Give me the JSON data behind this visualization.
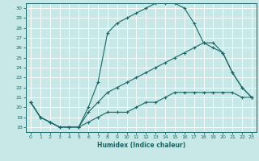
{
  "xlabel": "Humidex (Indice chaleur)",
  "xlim": [
    -0.5,
    23.5
  ],
  "ylim": [
    17.5,
    30.5
  ],
  "xticks": [
    0,
    1,
    2,
    3,
    4,
    5,
    6,
    7,
    8,
    9,
    10,
    11,
    12,
    13,
    14,
    15,
    16,
    17,
    18,
    19,
    20,
    21,
    22,
    23
  ],
  "yticks": [
    18,
    19,
    20,
    21,
    22,
    23,
    24,
    25,
    26,
    27,
    28,
    29,
    30
  ],
  "bg_color": "#c8e8e8",
  "grid_color": "#ffffff",
  "line_color": "#1a6666",
  "c3_x": [
    0,
    1,
    2,
    3,
    4,
    5,
    6,
    7,
    8,
    9,
    10,
    11,
    12,
    13,
    14,
    15,
    16,
    17,
    18,
    19,
    20,
    21,
    22,
    23
  ],
  "c3_y": [
    20.5,
    19.0,
    18.5,
    18.0,
    18.0,
    18.0,
    20.0,
    22.5,
    27.5,
    28.5,
    29.0,
    29.5,
    30.0,
    30.5,
    30.5,
    30.5,
    30.0,
    28.5,
    26.5,
    26.0,
    25.5,
    23.5,
    22.0,
    21.0
  ],
  "c2_x": [
    0,
    1,
    2,
    3,
    4,
    5,
    6,
    7,
    8,
    9,
    10,
    11,
    12,
    13,
    14,
    15,
    16,
    17,
    18,
    19,
    20,
    21,
    22,
    23
  ],
  "c2_y": [
    20.5,
    19.0,
    18.5,
    18.0,
    18.0,
    18.0,
    19.5,
    20.5,
    21.5,
    22.0,
    22.5,
    23.0,
    23.5,
    24.0,
    24.5,
    25.0,
    25.5,
    26.0,
    26.5,
    26.5,
    25.5,
    23.5,
    22.0,
    21.0
  ],
  "c1_x": [
    0,
    1,
    2,
    3,
    4,
    5,
    6,
    7,
    8,
    9,
    10,
    11,
    12,
    13,
    14,
    15,
    16,
    17,
    18,
    19,
    20,
    21,
    22,
    23
  ],
  "c1_y": [
    20.5,
    19.0,
    18.5,
    18.0,
    18.0,
    18.0,
    18.5,
    19.0,
    19.5,
    19.5,
    19.5,
    20.0,
    20.5,
    20.5,
    21.0,
    21.5,
    21.5,
    21.5,
    21.5,
    21.5,
    21.5,
    21.5,
    21.0,
    21.0
  ]
}
